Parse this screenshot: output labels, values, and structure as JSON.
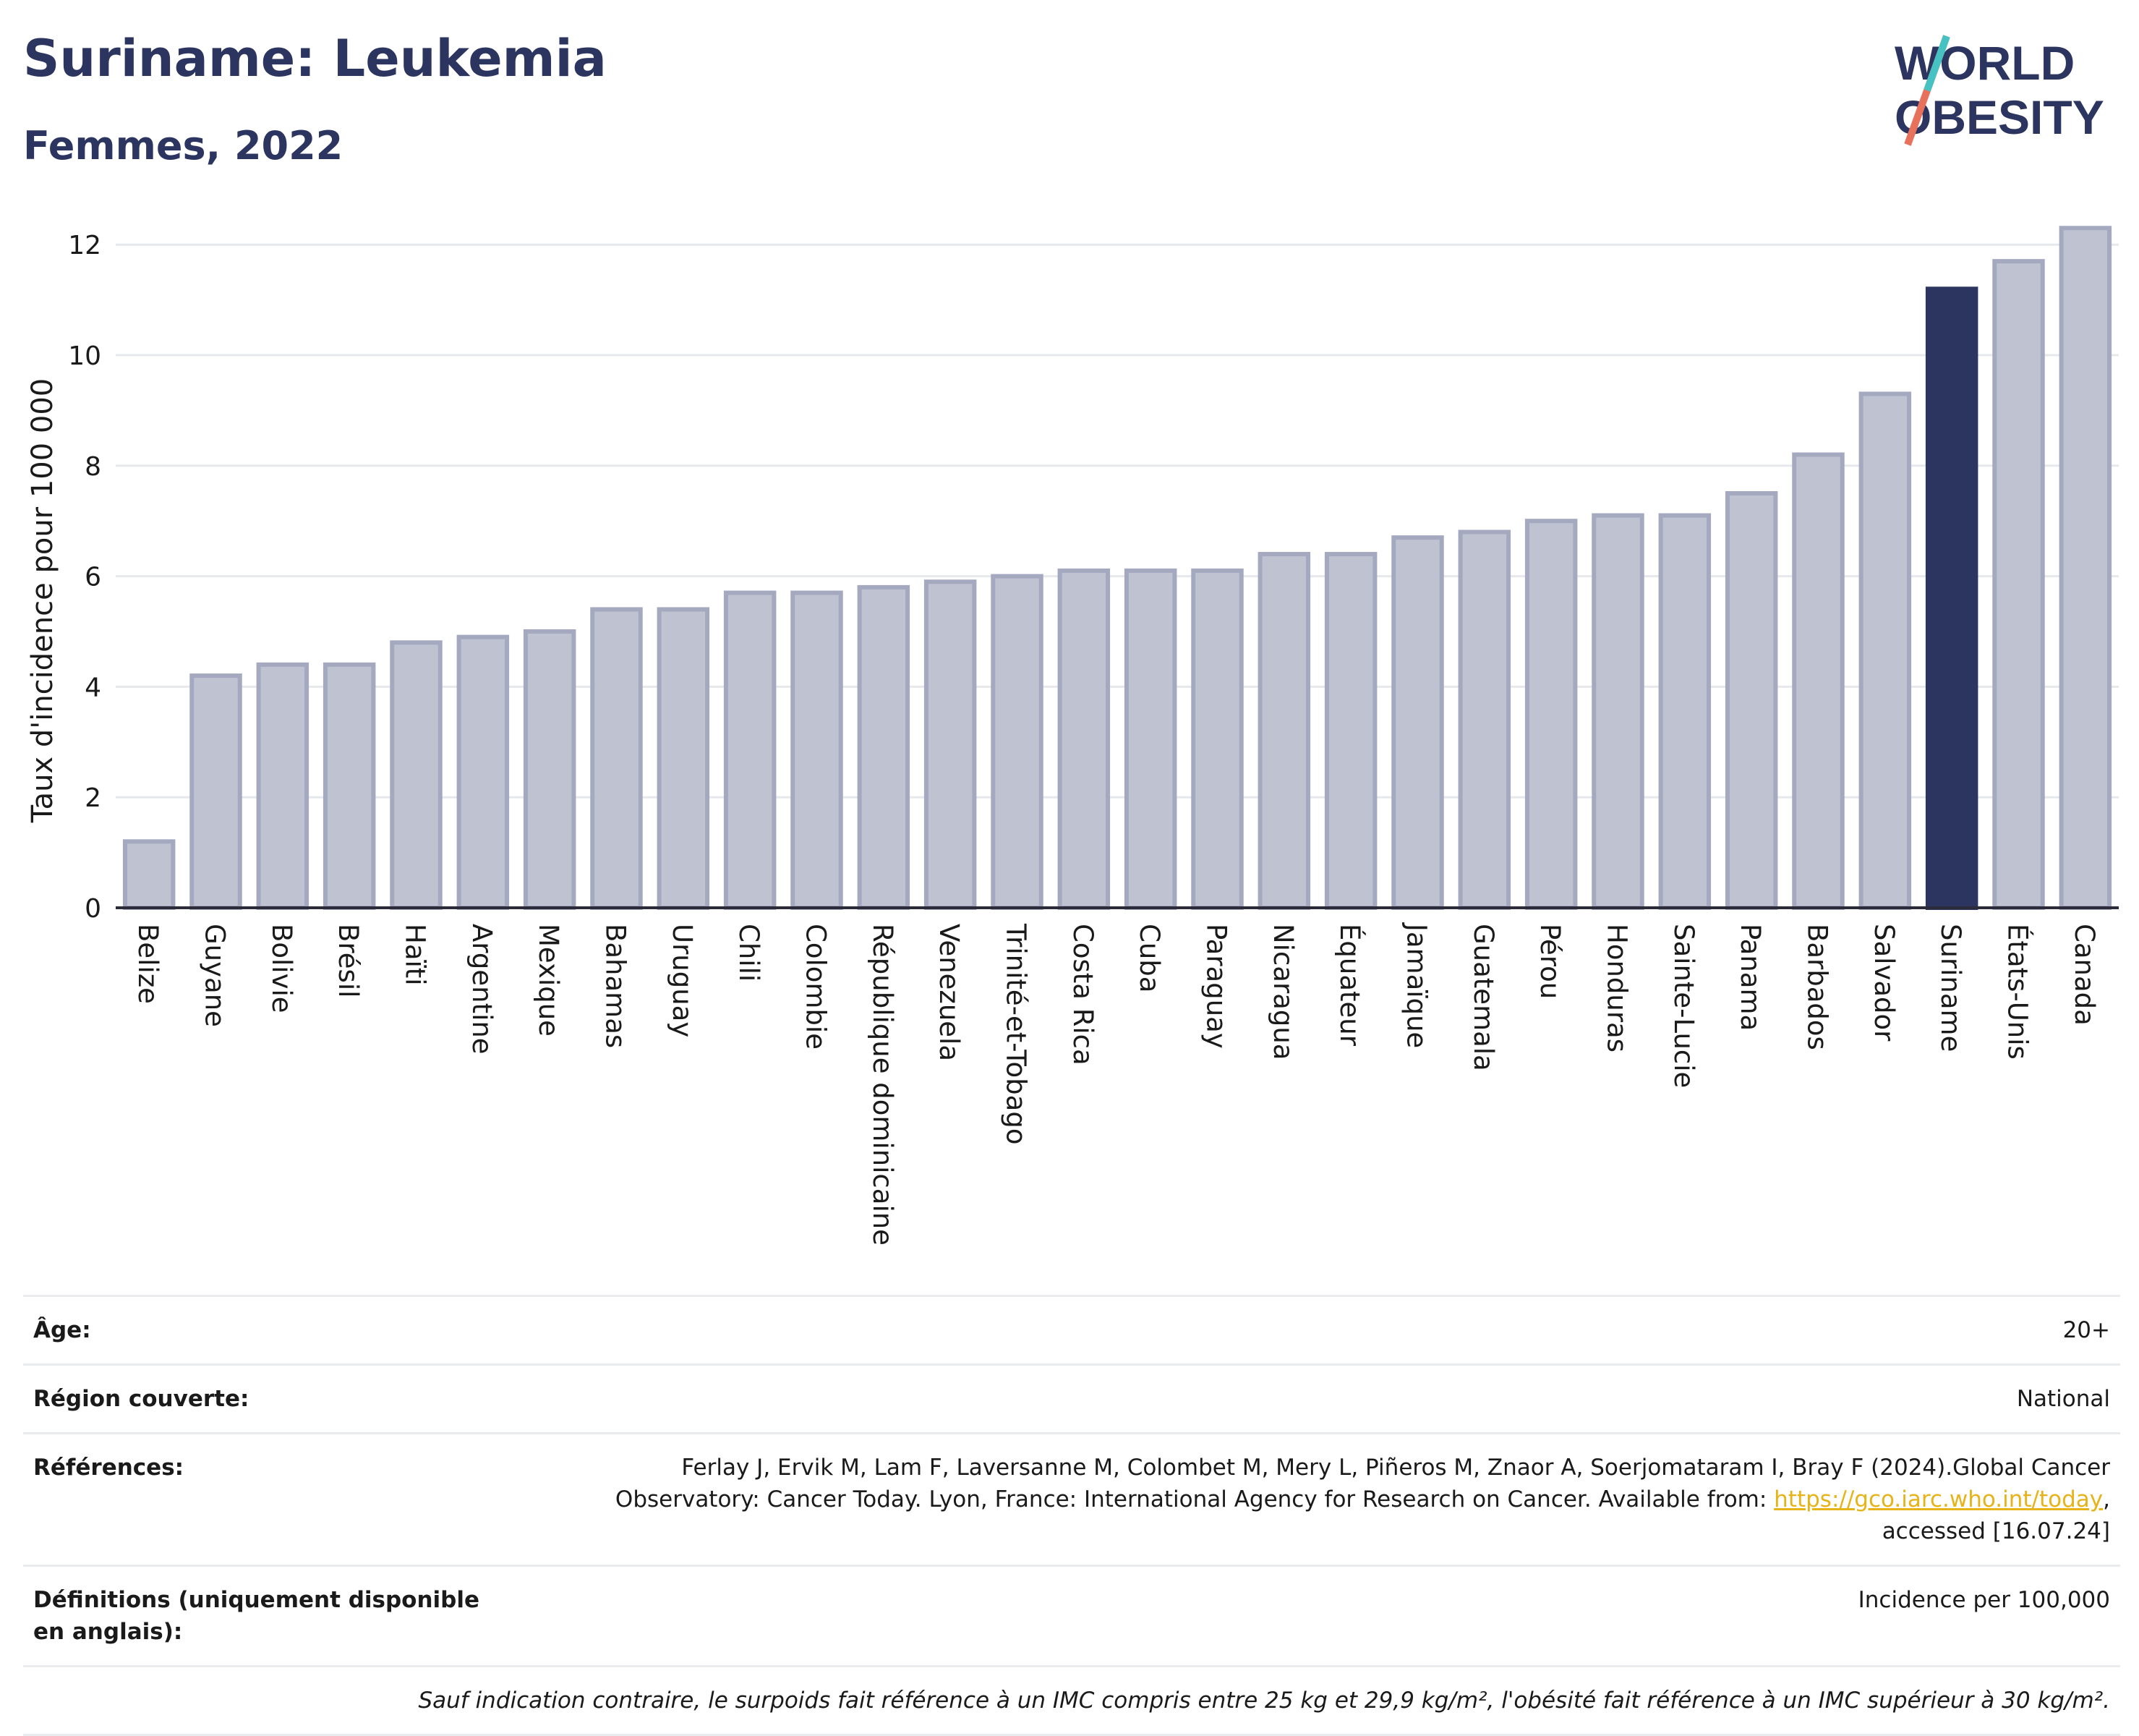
{
  "header": {
    "title": "Suriname: Leukemia",
    "subtitle": "Femmes, 2022"
  },
  "logo": {
    "line1": "WORLD",
    "line2": "OBESITY"
  },
  "chart_data": {
    "type": "bar",
    "title": "Suriname: Leukemia",
    "subtitle": "Femmes, 2022",
    "xlabel": "",
    "ylabel": "Taux d'incidence pour 100 000",
    "ylim": [
      0,
      12.5
    ],
    "yticks": [
      0,
      2,
      4,
      6,
      8,
      10,
      12
    ],
    "grid": true,
    "highlight": "Suriname",
    "colors": {
      "default": "#bfc2d0",
      "default_border": "#a4a9bf",
      "highlight": "#2c3560"
    },
    "categories": [
      "Belize",
      "Guyane",
      "Bolivie",
      "Brésil",
      "Haïti",
      "Argentine",
      "Mexique",
      "Bahamas",
      "Uruguay",
      "Chili",
      "Colombie",
      "République dominicaine",
      "Venezuela",
      "Trinité-et-Tobago",
      "Costa Rica",
      "Cuba",
      "Paraguay",
      "Nicaragua",
      "Équateur",
      "Jamaïque",
      "Guatemala",
      "Pérou",
      "Honduras",
      "Sainte-Lucie",
      "Panama",
      "Barbados",
      "Salvador",
      "Suriname",
      "États-Unis",
      "Canada"
    ],
    "values": [
      1.2,
      4.2,
      4.4,
      4.4,
      4.8,
      4.9,
      5.0,
      5.4,
      5.4,
      5.7,
      5.7,
      5.8,
      5.9,
      6.0,
      6.1,
      6.1,
      6.1,
      6.4,
      6.4,
      6.7,
      6.8,
      7.0,
      7.1,
      7.1,
      7.5,
      8.2,
      9.3,
      11.2,
      11.7,
      12.3
    ]
  },
  "info": {
    "age_label": "Âge:",
    "age_value": "20+",
    "region_label": "Région couverte:",
    "region_value": "National",
    "references_label": "Références:",
    "references_line1": "Ferlay J, Ervik M, Lam F, Laversanne M, Colombet M, Mery L, Piñeros M, Znaor A, Soerjomataram I, Bray F (2024).Global Cancer",
    "references_line2": "Observatory: Cancer Today. Lyon, France: International Agency for Research on Cancer. Available from: ",
    "references_link": "https://gco.iarc.who.int/today",
    "references_line2_end": ",",
    "references_line3": "accessed [16.07.24]",
    "definitions_label": "Définitions (uniquement disponible en anglais):",
    "definitions_value": "Incidence per 100,000",
    "note": "Sauf indication contraire, le surpoids fait référence à un IMC compris entre 25 kg et 29,9 kg/m², l'obésité fait référence à un IMC supérieur à 30 kg/m²."
  }
}
